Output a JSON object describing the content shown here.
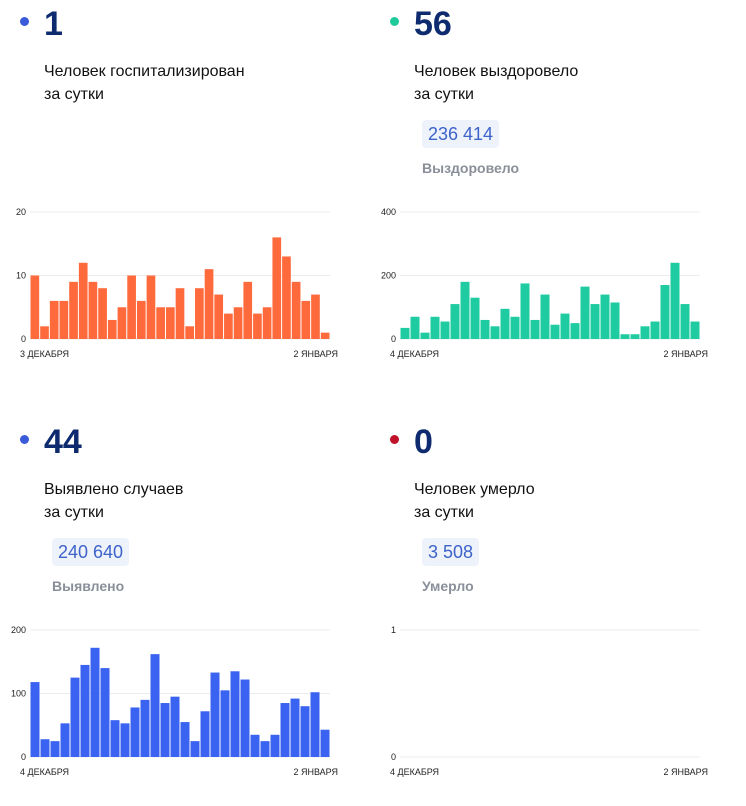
{
  "panels": [
    {
      "id": "hospitalized",
      "number": "1",
      "desc_line1": "Человек госпитализирован",
      "desc_line2": "за сутки",
      "total": "",
      "total_label": "",
      "dot_color": "#3a5bd9",
      "bar_color": "#ff6a3d"
    },
    {
      "id": "recovered",
      "number": "56",
      "desc_line1": "Человек выздоровело",
      "desc_line2": "за сутки",
      "total": "236 414",
      "total_label": "Выздоровело",
      "dot_color": "#1ec99a",
      "bar_color": "#1fcba0"
    },
    {
      "id": "cases",
      "number": "44",
      "desc_line1": "Выявлено случаев",
      "desc_line2": "за сутки",
      "total": "240 640",
      "total_label": "Выявлено",
      "dot_color": "#3a5bd9",
      "bar_color": "#3a63f2"
    },
    {
      "id": "deaths",
      "number": "0",
      "desc_line1": "Человек умерло",
      "desc_line2": "за сутки",
      "total": "3 508",
      "total_label": "Умерло",
      "dot_color": "#c0102a",
      "bar_color": "#c0102a"
    }
  ],
  "chart_data": [
    {
      "type": "bar",
      "x_start_label": "3 ДЕКАБРЯ",
      "x_end_label": "2 ЯНВАРЯ",
      "y_ticks": [
        0,
        10,
        20
      ],
      "ylim": [
        0,
        20
      ],
      "values": [
        10,
        2,
        6,
        6,
        9,
        12,
        9,
        8,
        3,
        5,
        10,
        6,
        10,
        5,
        5,
        8,
        2,
        8,
        11,
        7,
        4,
        5,
        9,
        4,
        5,
        16,
        13,
        9,
        6,
        7,
        1
      ]
    },
    {
      "type": "bar",
      "x_start_label": "4 ДЕКАБРЯ",
      "x_end_label": "2 ЯНВАРЯ",
      "y_ticks": [
        0,
        200,
        400
      ],
      "ylim": [
        0,
        400
      ],
      "values": [
        35,
        70,
        20,
        70,
        55,
        110,
        180,
        130,
        60,
        40,
        95,
        70,
        175,
        60,
        140,
        45,
        80,
        50,
        165,
        110,
        140,
        115,
        15,
        15,
        40,
        55,
        170,
        240,
        110,
        55
      ]
    },
    {
      "type": "bar",
      "x_start_label": "4 ДЕКАБРЯ",
      "x_end_label": "2 ЯНВАРЯ",
      "y_ticks": [
        0,
        100,
        200
      ],
      "ylim": [
        0,
        200
      ],
      "values": [
        118,
        28,
        25,
        53,
        125,
        145,
        172,
        140,
        58,
        53,
        78,
        90,
        162,
        85,
        95,
        55,
        25,
        72,
        133,
        105,
        135,
        122,
        35,
        25,
        35,
        85,
        92,
        80,
        102,
        43
      ]
    },
    {
      "type": "bar",
      "x_start_label": "4 ДЕКАБРЯ",
      "x_end_label": "2 ЯНВАРЯ",
      "y_ticks": [
        0,
        1
      ],
      "ylim": [
        0,
        1
      ],
      "values": [
        0,
        0,
        0,
        0,
        0,
        0,
        0,
        0,
        0,
        0,
        0,
        0,
        0,
        0,
        0,
        0,
        0,
        0,
        0,
        0,
        0,
        0,
        0,
        0,
        0,
        0,
        0,
        0,
        0,
        0
      ]
    }
  ]
}
